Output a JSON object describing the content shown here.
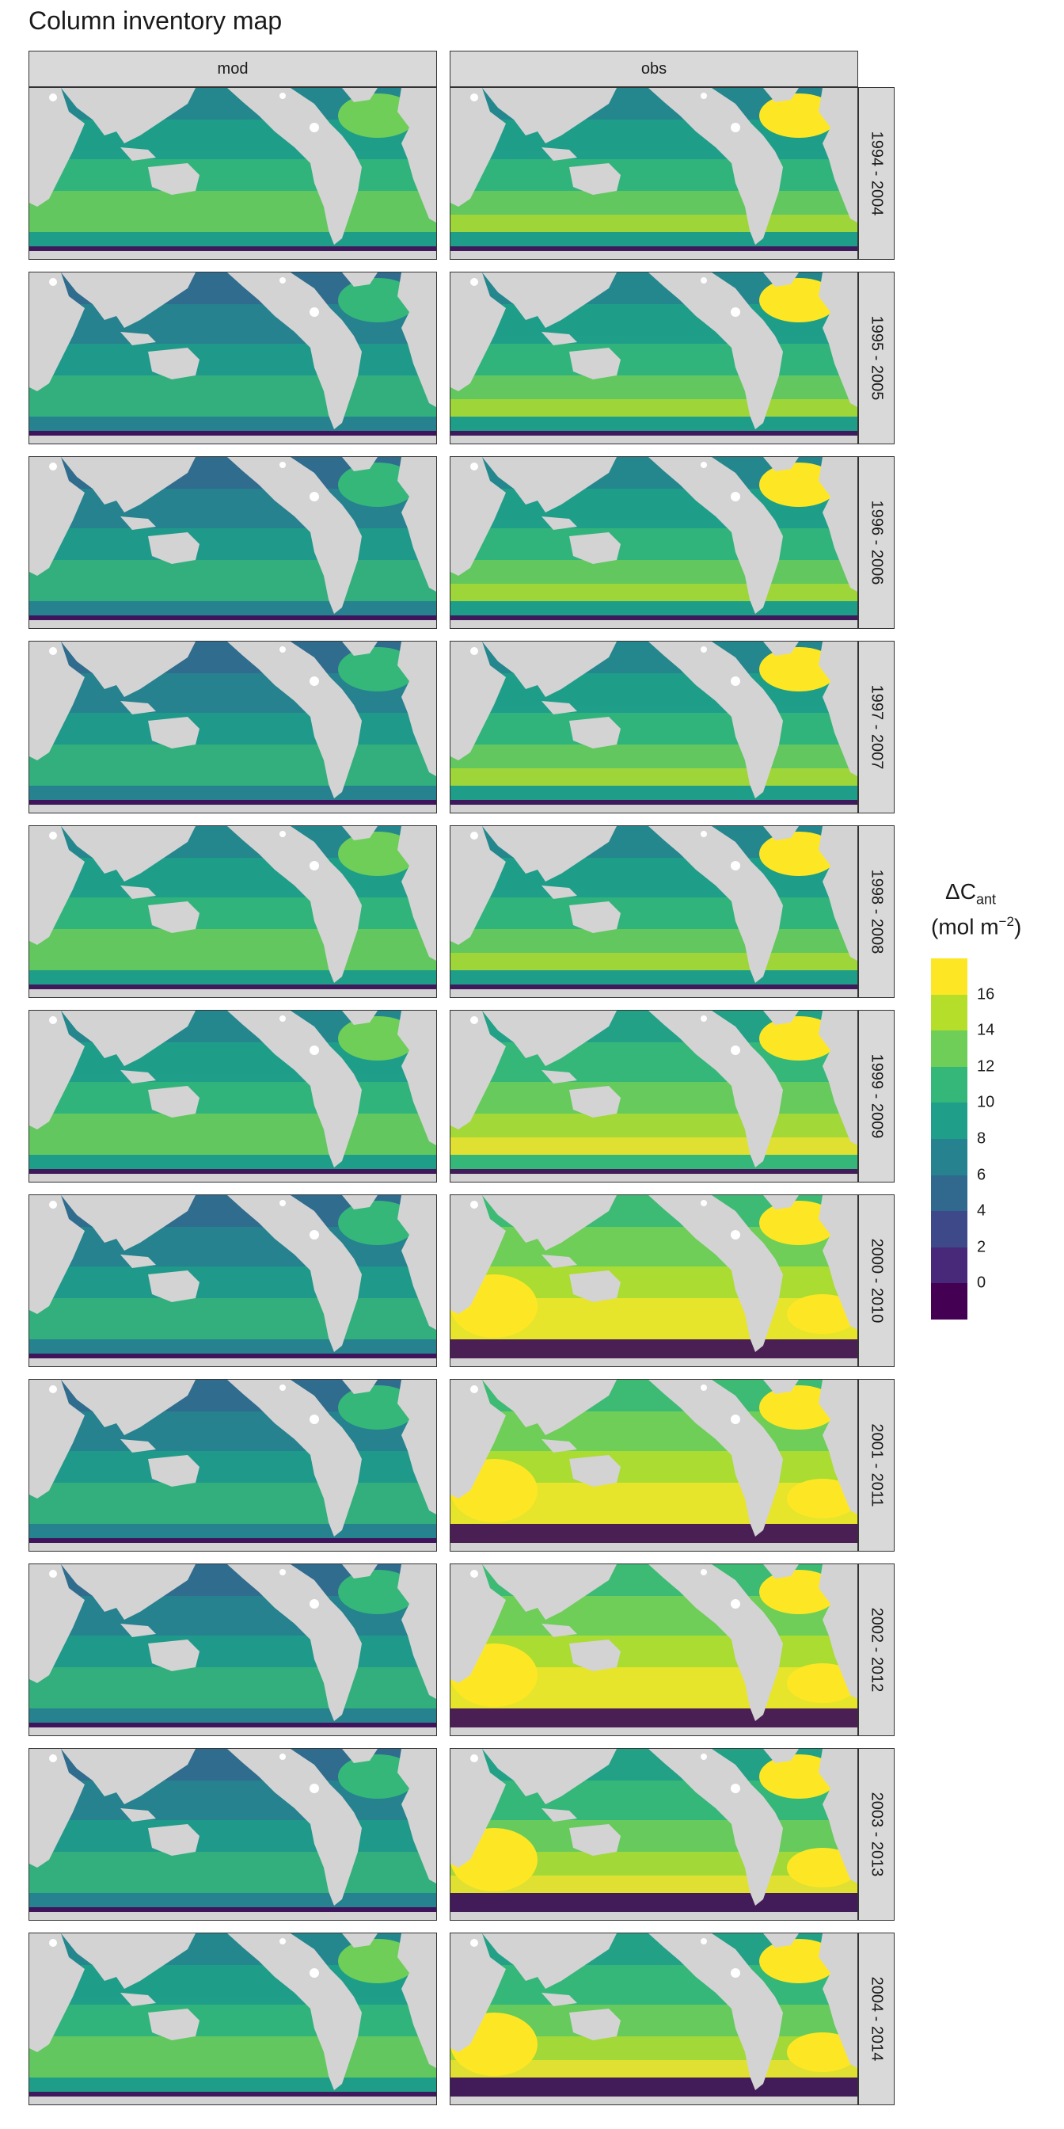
{
  "title": "Column inventory map",
  "columns": [
    "mod",
    "obs"
  ],
  "rows": [
    "1994 - 2004",
    "1995 - 2005",
    "1996 - 2006",
    "1997 - 2007",
    "1998 - 2008",
    "1999 - 2009",
    "2000 - 2010",
    "2001 - 2011",
    "2002 - 2012",
    "2003 - 2013",
    "2004 - 2014"
  ],
  "legend": {
    "title_main": "ΔC",
    "title_sub": "ant",
    "units_base": "(mol m",
    "units_sup": "−2",
    "units_close": ")",
    "labels": [
      "16",
      "14",
      "12",
      "10",
      "8",
      "6",
      "4",
      "2",
      "0"
    ],
    "colors": [
      "#fde725",
      "#b5de2b",
      "#6ece58",
      "#35b779",
      "#1f9e89",
      "#26828e",
      "#31688e",
      "#3e4989",
      "#482878",
      "#440154"
    ]
  },
  "colors": {
    "land": "#d3d3d3",
    "strip": "#d9d9d9"
  },
  "map_data": {
    "mod": [
      6,
      5,
      5,
      5,
      6,
      6,
      5,
      5,
      5,
      5,
      6
    ],
    "obs": [
      6,
      6,
      6,
      6,
      6,
      7,
      8,
      8,
      8,
      7,
      7
    ]
  }
}
